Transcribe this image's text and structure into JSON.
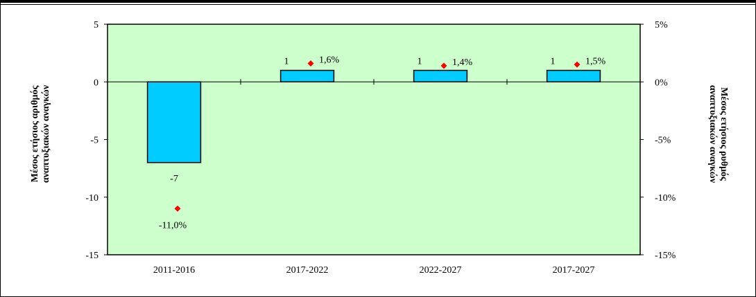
{
  "chart_data": {
    "type": "bar",
    "categories": [
      "2011-2016",
      "2017-2022",
      "2022-2027",
      "2017-2027"
    ],
    "series": [
      {
        "values": [
          -7,
          1,
          1,
          1
        ],
        "value_labels": [
          "-7",
          "1",
          "1",
          "1"
        ],
        "axis": "left",
        "mark": "bar",
        "color": "#00ccff"
      },
      {
        "values": [
          -11.0,
          1.6,
          1.4,
          1.5
        ],
        "value_labels": [
          "-11,0%",
          "1,6%",
          "1,4%",
          "1,5%"
        ],
        "axis": "right",
        "mark": "diamond",
        "color": "#ff0000"
      }
    ],
    "y_left": {
      "label_lines": [
        "Μέσος ετήσιος αριθμός",
        "αναπτυξιακών αναγκών"
      ],
      "ticks": [
        "5",
        "0",
        "-5",
        "-10",
        "-15"
      ],
      "tick_values": [
        5,
        0,
        -5,
        -10,
        -15
      ],
      "ylim": [
        -15,
        5
      ]
    },
    "y_right": {
      "label_lines": [
        "Μέσος ετήσιος ρυθμός",
        "αναπτυξιακών αναγκών"
      ],
      "ticks": [
        "5%",
        "0%",
        "-5%",
        "-10%",
        "-15%"
      ],
      "tick_values": [
        5,
        0,
        -5,
        -10,
        -15
      ],
      "ylim": [
        -15,
        5
      ]
    },
    "plot_background": "#ccffcc",
    "grid": false,
    "legend": "none"
  }
}
